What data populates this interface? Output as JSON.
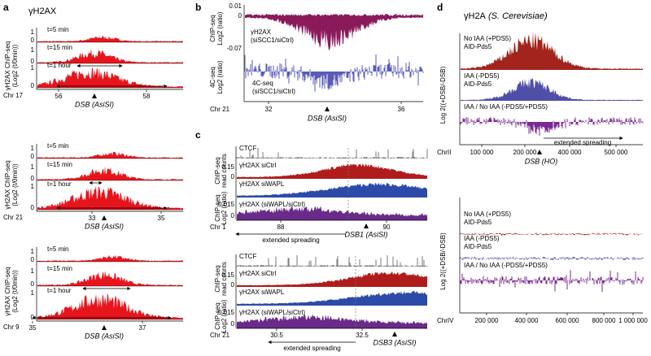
{
  "panels": [
    {
      "label": "a",
      "title": "γH2AX",
      "y_label": "γH2AX ChIP-seq",
      "y_label2": "(Log2 (t/0min))",
      "groups": [
        {
          "tracks": [
            {
              "name": "t=5 min",
              "ticks": [
                "1",
                "0"
              ]
            },
            {
              "name": "t=15 min",
              "ticks": [
                "1",
                "0"
              ]
            },
            {
              "name": "t=1 hour",
              "ticks": [
                "1",
                "0"
              ]
            }
          ],
          "chromosome": "Chr 17",
          "x_ticks": [
            "56",
            "58"
          ],
          "site": "DSB (AsiSI)"
        },
        {
          "tracks": [
            {
              "name": "t=5 min",
              "ticks": [
                "1",
                "0"
              ]
            },
            {
              "name": "t=15 min",
              "ticks": [
                "1",
                "0"
              ]
            },
            {
              "name": "t=1 hour",
              "ticks": [
                "1",
                "0"
              ]
            }
          ],
          "chromosome": "Chr 21",
          "x_ticks": [
            "33",
            "35"
          ],
          "site": "DSB (AsiSI)"
        },
        {
          "tracks": [
            {
              "name": "t=5 min",
              "ticks": [
                "1",
                "0"
              ]
            },
            {
              "name": "t=15 min",
              "ticks": [
                "1",
                "0"
              ]
            },
            {
              "name": "t=1 hour",
              "ticks": [
                "1",
                "0"
              ]
            }
          ],
          "chromosome": "Chr 9",
          "x_ticks": [
            "35",
            "37"
          ],
          "site": "DSB (AsiSI)"
        }
      ]
    },
    {
      "label": "b",
      "tracks": [
        {
          "y_label": "ChIP-seq",
          "y_label2": "Log2 (ratio)",
          "name": "γH2AX",
          "name2": "(siSCC1/siCtrl)",
          "ticks": [
            "0.01",
            "0",
            "-0.07"
          ]
        },
        {
          "y_label": "4C-seq",
          "y_label2": "Log2 (ratio)",
          "name": "4C-seq",
          "name2": "(siSCC1/siCtrl)"
        }
      ],
      "chromosome": "Chr 21",
      "x_ticks": [
        "32",
        "36"
      ],
      "site": "DSB (AsiSI)"
    },
    {
      "label": "c",
      "groups": [
        {
          "tracks": [
            "CTCF",
            "γH2AX siCtrl",
            "γH2AX siWAPL",
            "γH2AX (siWAPL/siCtrl)"
          ],
          "y_labels": [
            "ChIP-seq",
            "read counts",
            "ChIP-seq",
            "Log2 (ratio)"
          ],
          "ticks": [
            "0.15",
            "0",
            "0.015",
            "0"
          ],
          "chromosome": "Chr 1",
          "x_ticks": [
            "88",
            "90"
          ],
          "spreading": "extended spreading",
          "site": "DSB1 (AsiSI)"
        },
        {
          "tracks": [
            "CTCF",
            "γH2AX siCtrl",
            "γH2AX siWAPL",
            "γH2AX (siWAPL/siCtrl)"
          ],
          "y_labels": [
            "ChIP-seq",
            "read counts",
            "ChIP-seq",
            "Log2 (ratio)"
          ],
          "ticks": [
            "0.15",
            "0",
            "0.015",
            "0"
          ],
          "chromosome": "Chr 21",
          "x_ticks": [
            "30.5",
            "32.5"
          ],
          "spreading": "extended spreading",
          "site": "DSB3 (AsiSI)"
        }
      ]
    },
    {
      "label": "d",
      "title": "γH2A",
      "title_species": "(S. Cerevisiae)",
      "groups": [
        {
          "tracks": [
            [
              "No IAA (+PDS5)",
              "AID-Pds5"
            ],
            [
              "IAA (-PDS5)",
              "AID-Pds5"
            ],
            [
              "IAA / No IAA (-PDS5/+PDS5)"
            ]
          ],
          "y_label": "Log 2((+DSB/-DSB)",
          "chromosome": "ChrII",
          "x_ticks": [
            "100 000",
            "200 000",
            "400 000",
            "500 000"
          ],
          "spreading": "extended spreading",
          "site": "DSB (HO)"
        },
        {
          "tracks": [
            [
              "No IAA (+PDS5)",
              "AID-Pds5"
            ],
            [
              "IAA (-PDS5)",
              "AID-Pds5"
            ],
            [
              "IAA / No IAA (-PDS5/+PDS5)"
            ]
          ],
          "y_label": "Log 2((+DSB/-DSB)",
          "chromosome": "ChrIV",
          "x_ticks": [
            "200 000",
            "400 000",
            "600 000",
            "800 000",
            "1 000 000"
          ]
        }
      ]
    }
  ]
}
